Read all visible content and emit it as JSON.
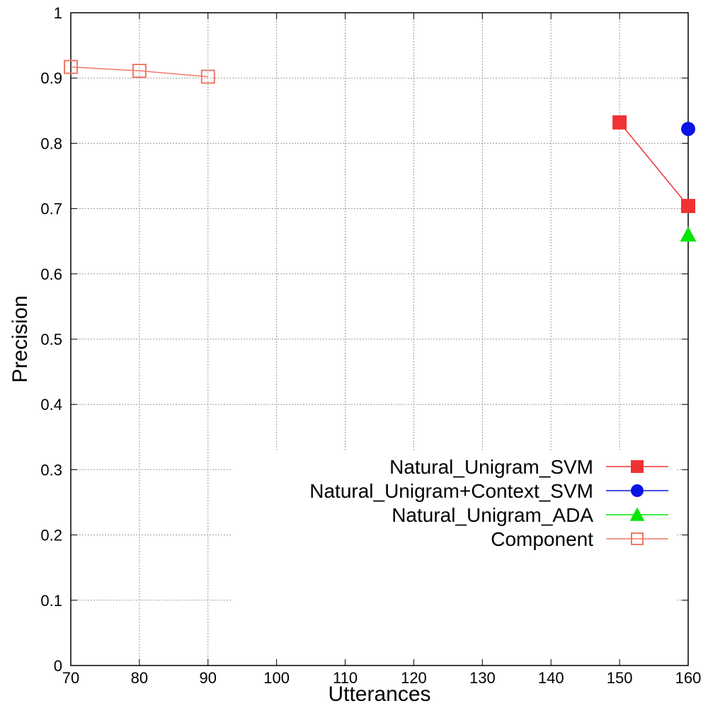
{
  "chart_data": {
    "type": "line",
    "title": "",
    "xlabel": "Utterances",
    "ylabel": "Precision",
    "xlim": [
      70,
      160
    ],
    "ylim": [
      0,
      1
    ],
    "xticks": [
      "70",
      "80",
      "90",
      "100",
      "110",
      "120",
      "130",
      "140",
      "150",
      "160"
    ],
    "yticks": [
      "0",
      "0.1",
      "0.2",
      "0.3",
      "0.4",
      "0.5",
      "0.6",
      "0.7",
      "0.8",
      "0.9",
      "1"
    ],
    "grid": true,
    "legend_position": "bottom-right",
    "series": [
      {
        "name": "Natural_Unigram_SVM",
        "color": "#f03232",
        "marker": "square-filled",
        "x": [
          150,
          160
        ],
        "y": [
          0.832,
          0.704
        ]
      },
      {
        "name": "Natural_Unigram+Context_SVM",
        "color": "#0a14e6",
        "marker": "circle-filled",
        "x": [
          160
        ],
        "y": [
          0.822
        ]
      },
      {
        "name": "Natural_Unigram_ADA",
        "color": "#00e600",
        "marker": "triangle-filled",
        "x": [
          160
        ],
        "y": [
          0.66
        ]
      },
      {
        "name": "Component",
        "color": "#f07868",
        "marker": "square-open",
        "x": [
          70,
          80,
          90
        ],
        "y": [
          0.917,
          0.911,
          0.902
        ]
      }
    ]
  }
}
